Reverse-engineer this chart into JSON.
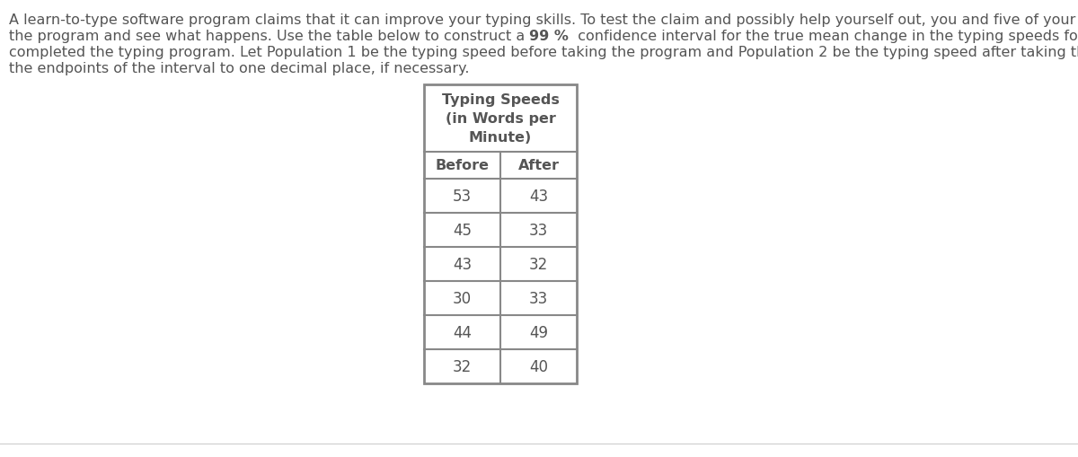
{
  "line1": "A learn-to-type software program claims that it can improve your typing skills. To test the claim and possibly help yourself out, you and five of your friends decide to try",
  "line2": "the program and see what happens. Use the table below to construct a 99 %  confidence interval for the true mean change in the typing speeds for people who have",
  "line3": "completed the typing program. Let Population 1 be the typing speed before taking the program and Population 2 be the typing speed after taking the program. Round",
  "line4": "the endpoints of the interval to one decimal place, if necessary.",
  "bold_token": "99 %",
  "line2_pre_bold": "the program and see what happens. Use the table below to construct a ",
  "line2_post_bold": "  confidence interval for the true mean change in the typing speeds for people who have",
  "col_headers": [
    "Before",
    "After"
  ],
  "before": [
    53,
    45,
    43,
    30,
    44,
    32
  ],
  "after": [
    43,
    33,
    32,
    33,
    49,
    40
  ],
  "bg_color": "#ffffff",
  "text_color": "#555555",
  "table_border_color": "#888888",
  "para_fontsize": 11.5,
  "table_header_fontsize": 11.5,
  "table_data_fontsize": 12,
  "fig_width": 12,
  "fig_height": 5.1,
  "table_header_text": "Typing Speeds\n(in Words per\nMinute)"
}
